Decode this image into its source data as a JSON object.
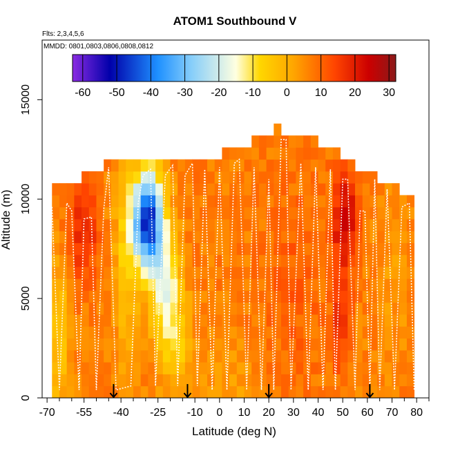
{
  "chart_data": {
    "type": "heatmap",
    "title": "ATOM1 Southbound V",
    "subtitle_flights": "Flts: 2,3,4,5,6",
    "subtitle_dates": "MMDD: 0801,0803,0806,0808,0812",
    "xlabel": "Latitude (deg N)",
    "ylabel": "Altitude (m)",
    "xlim": [
      -72,
      85
    ],
    "ylim": [
      0,
      18000
    ],
    "x_ticks": [
      -70,
      -55,
      -40,
      -25,
      -10,
      0,
      10,
      20,
      30,
      40,
      50,
      60,
      70,
      80
    ],
    "x_tick_labels": [
      "-70",
      "-55",
      "-40",
      "-25",
      "-10",
      "0",
      "10",
      "20",
      "30",
      "40",
      "50",
      "60",
      "70",
      "80"
    ],
    "x_minor_ticks": [
      -65,
      -60,
      -50,
      -45,
      -35,
      -30,
      -20,
      -15,
      -5,
      5,
      15,
      25,
      35,
      45,
      55,
      65,
      75,
      85
    ],
    "y_ticks": [
      0,
      5000,
      10000,
      15000
    ],
    "y_tick_labels": [
      "0",
      "5000",
      "10000",
      "15000"
    ],
    "colorbar": {
      "min": -63,
      "max": 32,
      "ticks": [
        -60,
        -50,
        -40,
        -30,
        -20,
        -10,
        0,
        10,
        20,
        30
      ],
      "tick_labels": [
        "-60",
        "-50",
        "-40",
        "-30",
        "-20",
        "-10",
        "0",
        "10",
        "20",
        "30"
      ],
      "colors": [
        "#8a2be2",
        "#0000aa",
        "#1e90ff",
        "#87cefa",
        "#ffffe0",
        "#ffd700",
        "#ffa500",
        "#ff4500",
        "#cc0000",
        "#8b1a1a"
      ],
      "color_positions": [
        -63,
        -52,
        -38,
        -28,
        -15,
        -8,
        2,
        14,
        24,
        32
      ]
    },
    "value_field": {
      "lat_step": 3,
      "alt_step": 600,
      "max_altitude_by_latitude": [
        [
          -68,
          10500
        ],
        [
          -60,
          10500
        ],
        [
          -52,
          11000
        ],
        [
          -46,
          11400
        ],
        [
          -40,
          12000
        ],
        [
          -30,
          12000
        ],
        [
          -20,
          12000
        ],
        [
          -12,
          11800
        ],
        [
          -6,
          11800
        ],
        [
          0,
          12000
        ],
        [
          6,
          12400
        ],
        [
          10,
          12400
        ],
        [
          14,
          12800
        ],
        [
          20,
          12800
        ],
        [
          24,
          13400
        ],
        [
          30,
          12800
        ],
        [
          36,
          12800
        ],
        [
          42,
          12400
        ],
        [
          50,
          12000
        ],
        [
          56,
          11400
        ],
        [
          62,
          11000
        ],
        [
          68,
          10600
        ],
        [
          72,
          10200
        ],
        [
          76,
          9800
        ],
        [
          80,
          9800
        ]
      ],
      "baseline": 7,
      "features": [
        {
          "lat": -29,
          "alt": 9000,
          "dlat": 6,
          "dalt": 2500,
          "amp": -55
        },
        {
          "lat": -22,
          "alt": 5500,
          "dlat": 6,
          "dalt": 3000,
          "amp": -22
        },
        {
          "lat": -38,
          "alt": 7000,
          "dlat": 5,
          "dalt": 5000,
          "amp": -12
        },
        {
          "lat": -17,
          "alt": 2500,
          "dlat": 6,
          "dalt": 2500,
          "amp": -10
        },
        {
          "lat": -65,
          "alt": 3000,
          "dlat": 4,
          "dalt": 4000,
          "amp": -12
        },
        {
          "lat": -55,
          "alt": 8500,
          "dlat": 6,
          "dalt": 2500,
          "amp": 12
        },
        {
          "lat": 51,
          "alt": 9000,
          "dlat": 5,
          "dalt": 2500,
          "amp": 18
        },
        {
          "lat": 49,
          "alt": 4000,
          "dlat": 3,
          "dalt": 2500,
          "amp": 12
        },
        {
          "lat": 30,
          "alt": 6000,
          "dlat": 12,
          "dalt": 5000,
          "amp": 4
        },
        {
          "lat": 5,
          "alt": 1000,
          "dlat": 12,
          "dalt": 2000,
          "amp": -4
        },
        {
          "lat": 70,
          "alt": 6000,
          "dlat": 8,
          "dalt": 5000,
          "amp": -3
        }
      ]
    },
    "flight_tracks": [
      {
        "name": "profiles-1",
        "style": "solid",
        "points": [
          [
            -68,
            9600
          ],
          [
            -65,
            400
          ],
          [
            -62,
            9800
          ],
          [
            -60,
            9400
          ],
          [
            -57,
            400
          ],
          [
            -55,
            9000
          ],
          [
            -52,
            9100
          ],
          [
            -50,
            400
          ],
          [
            -47,
            9500
          ],
          [
            -45,
            11600
          ],
          [
            -42,
            400
          ],
          [
            -36,
            600
          ],
          [
            -33,
            9800
          ],
          [
            -31,
            11200
          ],
          [
            -28,
            11500
          ],
          [
            -26,
            600
          ],
          [
            -22,
            11200
          ],
          [
            -19,
            11700
          ],
          [
            -17,
            600
          ],
          [
            -14,
            11200
          ],
          [
            -11,
            11800
          ],
          [
            -9,
            600
          ],
          [
            -6,
            11500
          ],
          [
            -3,
            400
          ],
          [
            0,
            11600
          ],
          [
            3,
            400
          ],
          [
            6,
            11800
          ],
          [
            8,
            12000
          ],
          [
            11,
            400
          ],
          [
            14,
            11600
          ],
          [
            17,
            400
          ],
          [
            20,
            11000
          ],
          [
            22,
            400
          ],
          [
            25,
            13000
          ],
          [
            27,
            13000
          ],
          [
            29,
            400
          ],
          [
            33,
            11800
          ],
          [
            36,
            400
          ],
          [
            39,
            11600
          ],
          [
            42,
            400
          ],
          [
            45,
            11500
          ],
          [
            47,
            400
          ],
          [
            50,
            11000
          ],
          [
            52,
            11000
          ],
          [
            55,
            400
          ],
          [
            57,
            9400
          ],
          [
            59,
            9400
          ],
          [
            61,
            400
          ],
          [
            63,
            11000
          ],
          [
            65,
            400
          ],
          [
            68,
            10500
          ],
          [
            71,
            400
          ],
          [
            74,
            9600
          ],
          [
            77,
            9800
          ],
          [
            79,
            400
          ]
        ]
      }
    ],
    "annotations": {
      "arrows_at_latitude": [
        -43,
        -13,
        20,
        61
      ]
    }
  }
}
